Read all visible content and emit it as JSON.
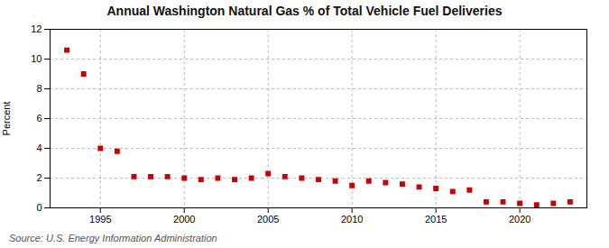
{
  "chart_data": {
    "type": "scatter",
    "title": "Annual Washington Natural Gas % of Total Vehicle Fuel Deliveries",
    "ylabel": "Percent",
    "source": "Source: U.S. Energy Information Administration",
    "x": [
      1993,
      1994,
      1995,
      1996,
      1997,
      1998,
      1999,
      2000,
      2001,
      2002,
      2003,
      2004,
      2005,
      2006,
      2007,
      2008,
      2009,
      2010,
      2011,
      2012,
      2013,
      2014,
      2015,
      2016,
      2017,
      2018,
      2019,
      2020,
      2021,
      2022,
      2023
    ],
    "values": [
      10.6,
      9.0,
      4.0,
      3.8,
      2.1,
      2.1,
      2.1,
      2.0,
      1.9,
      2.0,
      1.9,
      2.0,
      2.3,
      2.1,
      2.0,
      1.9,
      1.8,
      1.5,
      1.8,
      1.7,
      1.6,
      1.4,
      1.3,
      1.1,
      1.2,
      0.4,
      0.4,
      0.3,
      0.2,
      0.3,
      0.4
    ],
    "color": "#cc0000",
    "marker": "square",
    "xlim": [
      1992,
      2024
    ],
    "xticks": [
      1995,
      2000,
      2005,
      2010,
      2015,
      2020
    ],
    "ylim": [
      0,
      12
    ],
    "yticks": [
      0,
      2,
      4,
      6,
      8,
      10,
      12
    ],
    "grid": true
  }
}
